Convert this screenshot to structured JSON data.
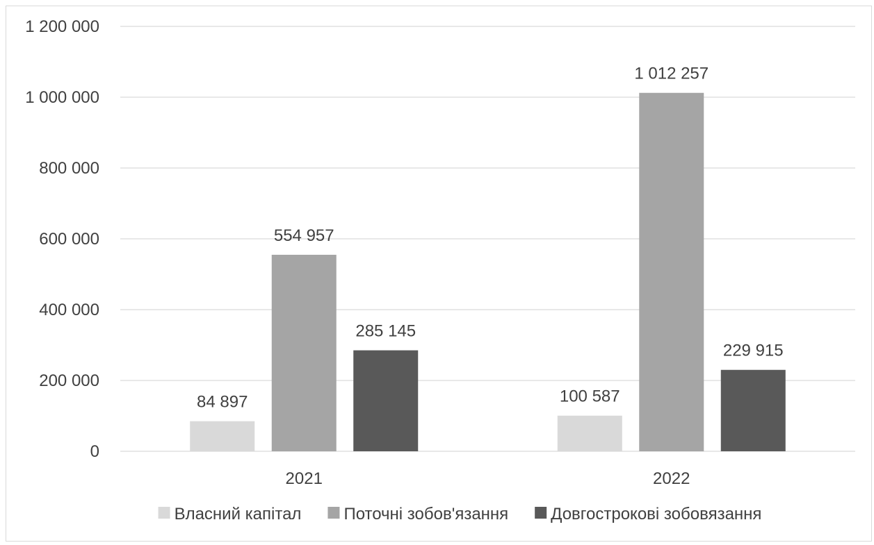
{
  "chart_data": {
    "type": "bar",
    "title": "",
    "xlabel": "",
    "ylabel": "",
    "categories": [
      "2021",
      "2022"
    ],
    "series": [
      {
        "name": "Власний капітал",
        "values": [
          84897,
          100587
        ],
        "labels": [
          "84 897",
          "100 587"
        ],
        "color": "#d9d9d9"
      },
      {
        "name": "Поточні зобов'язання",
        "values": [
          554957,
          1012257
        ],
        "labels": [
          "554 957",
          "1 012 257"
        ],
        "color": "#a5a5a5"
      },
      {
        "name": "Довгострокові зобовязання",
        "values": [
          285145,
          229915
        ],
        "labels": [
          "285 145",
          "229 915"
        ],
        "color": "#595959"
      }
    ],
    "ylim": [
      0,
      1200000
    ],
    "yticks": [
      0,
      200000,
      400000,
      600000,
      800000,
      1000000,
      1200000
    ],
    "ytick_labels": [
      "0",
      "200 000",
      "400 000",
      "600 000",
      "800 000",
      "1 000 000",
      "1 200 000"
    ],
    "grid": true,
    "legend_position": "bottom",
    "colors": {
      "gridline": "#d9d9d9",
      "text": "#404040"
    }
  }
}
